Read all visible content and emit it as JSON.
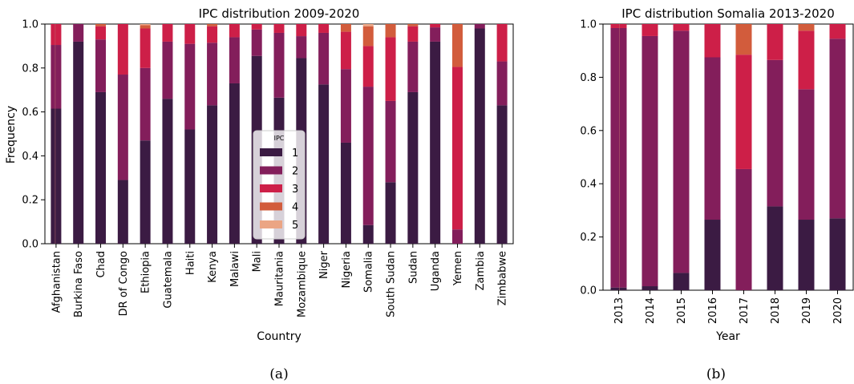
{
  "colors": {
    "1": "#3b1b43",
    "2": "#831e5b",
    "3": "#cd1f48",
    "4": "#d25c3c",
    "5": "#eba584"
  },
  "chart_data": [
    {
      "type": "bar",
      "stacked": true,
      "title": "IPC distribution 2009-2020",
      "xlabel": "Country",
      "ylabel": "Frequency",
      "ylim": [
        0,
        1.0
      ],
      "yticks": [
        "0.0",
        "0.2",
        "0.4",
        "0.6",
        "0.8",
        "1.0"
      ],
      "caption": "(a)",
      "legend": {
        "title": "IPC",
        "placement": "center",
        "labels": [
          "1",
          "2",
          "3",
          "4",
          "5"
        ]
      },
      "categories": [
        "Afghanistan",
        "Burkina Faso",
        "Chad",
        "DR of Congo",
        "Ethiopia",
        "Guatemala",
        "Haiti",
        "Kenya",
        "Malawi",
        "Mali",
        "Mauritania",
        "Mozambique",
        "Niger",
        "Nigeria",
        "Somalia",
        "South Sudan",
        "Sudan",
        "Uganda",
        "Yemen",
        "Zambia",
        "Zimbabwe"
      ],
      "series": [
        {
          "name": "1",
          "values": [
            0.615,
            0.92,
            0.69,
            0.29,
            0.47,
            0.66,
            0.52,
            0.63,
            0.73,
            0.855,
            0.665,
            0.845,
            0.725,
            0.46,
            0.085,
            0.28,
            0.69,
            0.92,
            0.0,
            0.98,
            0.63
          ]
        },
        {
          "name": "2",
          "values": [
            0.29,
            0.08,
            0.24,
            0.48,
            0.33,
            0.26,
            0.39,
            0.285,
            0.21,
            0.12,
            0.295,
            0.1,
            0.235,
            0.335,
            0.63,
            0.37,
            0.23,
            0.065,
            0.065,
            0.02,
            0.2
          ]
        },
        {
          "name": "3",
          "values": [
            0.095,
            0.0,
            0.06,
            0.23,
            0.18,
            0.08,
            0.09,
            0.075,
            0.06,
            0.025,
            0.04,
            0.055,
            0.04,
            0.17,
            0.185,
            0.29,
            0.07,
            0.015,
            0.74,
            0.0,
            0.17
          ]
        },
        {
          "name": "4",
          "values": [
            0.0,
            0.0,
            0.01,
            0.0,
            0.015,
            0.0,
            0.0,
            0.01,
            0.0,
            0.0,
            0.0,
            0.0,
            0.0,
            0.035,
            0.09,
            0.06,
            0.01,
            0.0,
            0.195,
            0.0,
            0.0
          ]
        },
        {
          "name": "5",
          "values": [
            0.0,
            0.0,
            0.0,
            0.0,
            0.005,
            0.0,
            0.0,
            0.0,
            0.0,
            0.0,
            0.0,
            0.0,
            0.0,
            0.0,
            0.01,
            0.0,
            0.0,
            0.0,
            0.0,
            0.0,
            0.0
          ]
        }
      ]
    },
    {
      "type": "bar",
      "stacked": true,
      "title": "IPC distribution Somalia 2013-2020",
      "xlabel": "Year",
      "ylabel": "",
      "ylim": [
        0,
        1.0
      ],
      "yticks": [
        "0.0",
        "0.2",
        "0.4",
        "0.6",
        "0.8",
        "1.0"
      ],
      "caption": "(b)",
      "categories": [
        "2013",
        "2014",
        "2015",
        "2016",
        "2017",
        "2018",
        "2019",
        "2020"
      ],
      "series": [
        {
          "name": "1",
          "values": [
            0.01,
            0.015,
            0.065,
            0.265,
            0.0,
            0.315,
            0.265,
            0.27
          ]
        },
        {
          "name": "2",
          "values": [
            0.975,
            0.94,
            0.91,
            0.61,
            0.455,
            0.55,
            0.49,
            0.675
          ]
        },
        {
          "name": "3",
          "values": [
            0.015,
            0.045,
            0.025,
            0.125,
            0.43,
            0.135,
            0.22,
            0.055
          ]
        },
        {
          "name": "4",
          "values": [
            0.0,
            0.0,
            0.0,
            0.0,
            0.115,
            0.0,
            0.025,
            0.0
          ]
        },
        {
          "name": "5",
          "values": [
            0.0,
            0.0,
            0.0,
            0.0,
            0.0,
            0.0,
            0.0,
            0.0
          ]
        }
      ]
    }
  ]
}
